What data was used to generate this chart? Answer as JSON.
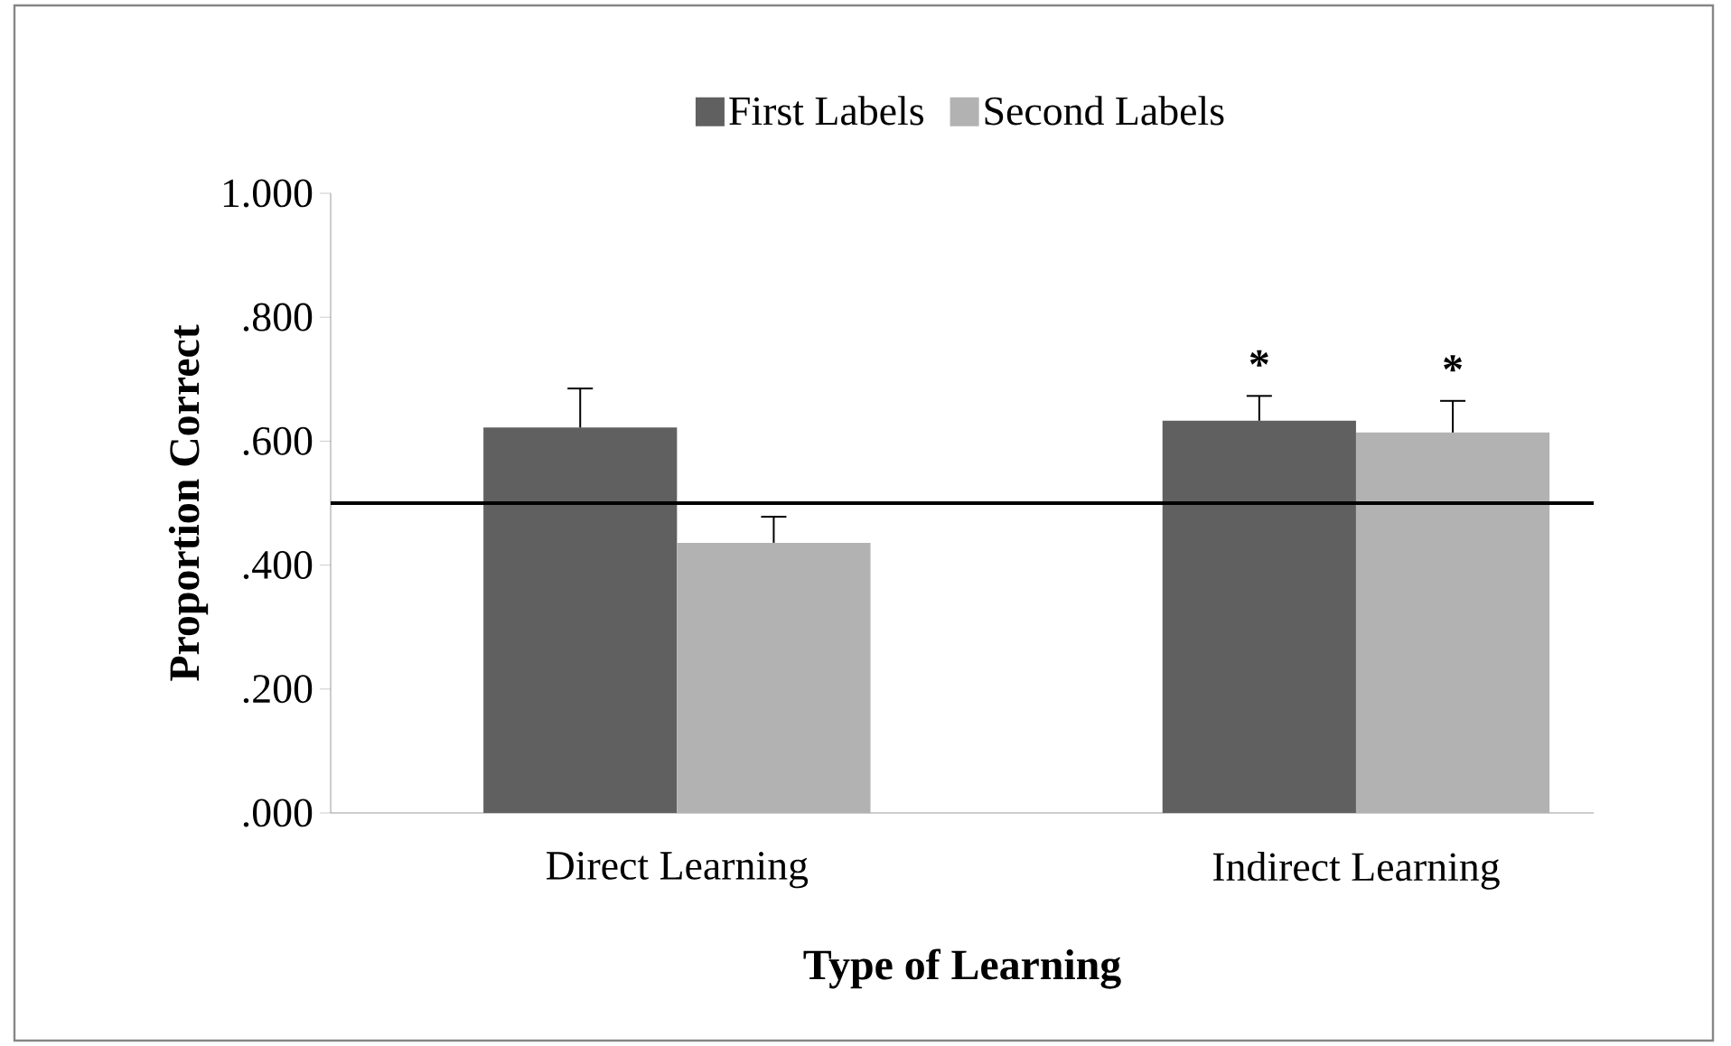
{
  "chart_data": {
    "type": "bar",
    "xlabel": "Type of Learning",
    "ylabel": "Proportion Correct",
    "categories": [
      "Direct Learning",
      "Indirect Learning"
    ],
    "series": [
      {
        "name": "First Labels",
        "color": "#606060",
        "values": [
          0.622,
          0.633
        ],
        "errors": [
          [
            0.622,
            0.685
          ],
          [
            0.633,
            0.673
          ]
        ]
      },
      {
        "name": "Second Labels",
        "color": "#b2b2b2",
        "values": [
          0.436,
          0.614
        ],
        "errors": [
          [
            0.436,
            0.478
          ],
          [
            0.614,
            0.665
          ]
        ]
      }
    ],
    "ylim": [
      0,
      1
    ],
    "yticks": [
      {
        "value": 0,
        "label": ".000"
      },
      {
        "value": 0.2,
        "label": ".200"
      },
      {
        "value": 0.4,
        "label": ".400"
      },
      {
        "value": 0.6,
        "label": ".600"
      },
      {
        "value": 0.8,
        "label": ".800"
      },
      {
        "value": 1,
        "label": "1.000"
      }
    ],
    "ref_lines": [
      {
        "axis": "y",
        "value": 0.5,
        "color": "#000000"
      }
    ],
    "annotations": [
      "*",
      "*"
    ],
    "legend": "top",
    "grid": false
  }
}
